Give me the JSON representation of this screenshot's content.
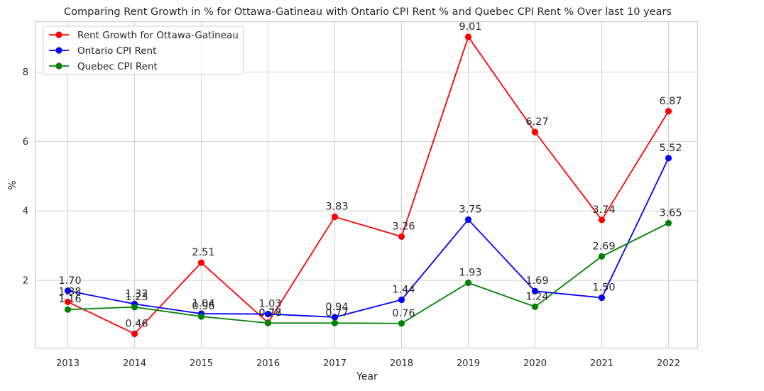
{
  "chart_data": {
    "type": "line",
    "title": "Comparing Rent Growth in % for Ottawa-Gatineau with Ontario CPI Rent % and Quebec CPI Rent % Over last 10 years",
    "xlabel": "Year",
    "ylabel": "%",
    "x": [
      "2013",
      "2014",
      "2015",
      "2016",
      "2017",
      "2018",
      "2019",
      "2020",
      "2021",
      "2022"
    ],
    "ylim": [
      0.05,
      9.45
    ],
    "yticks": [
      2,
      4,
      6,
      8
    ],
    "grid": true,
    "legend_position": "top-left",
    "series": [
      {
        "name": "Rent Growth for Ottawa-Gatineau",
        "color": "#ff0000",
        "values": [
          1.38,
          0.46,
          2.51,
          0.78,
          3.83,
          3.26,
          9.01,
          6.27,
          3.74,
          6.87
        ],
        "labels": [
          "1.38",
          "0.46",
          "2.51",
          "0.78",
          "3.83",
          "3.26",
          "9.01",
          "6.27",
          "3.74",
          "6.87"
        ]
      },
      {
        "name": "Ontario CPI Rent",
        "color": "#0000ff",
        "values": [
          1.7,
          1.32,
          1.04,
          1.03,
          0.94,
          1.44,
          3.75,
          1.69,
          1.5,
          5.52
        ],
        "labels": [
          "1.70",
          "1.32",
          "1.04",
          "1.03",
          "0.94",
          "1.44",
          "3.75",
          "1.69",
          "1.50",
          "5.52"
        ]
      },
      {
        "name": "Quebec CPI Rent",
        "color": "#008000",
        "values": [
          1.16,
          1.23,
          0.96,
          0.77,
          0.77,
          0.76,
          1.93,
          1.24,
          2.69,
          3.65
        ],
        "labels": [
          "1.16",
          "1.23",
          "0.96",
          "0.77",
          "0.77",
          "0.76",
          "1.93",
          "1.24",
          "2.69",
          "3.65"
        ]
      }
    ]
  }
}
